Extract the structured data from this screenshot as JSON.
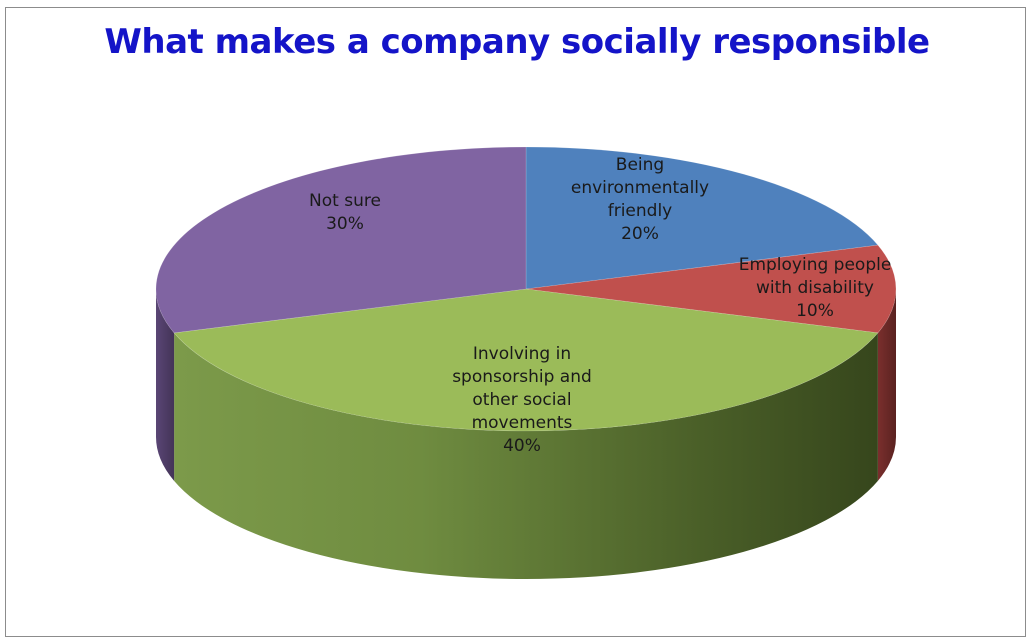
{
  "chart_data": {
    "type": "pie",
    "title": "What makes a company socially responsible",
    "categories": [
      "Being environmentally friendly",
      "Employing people with disability",
      "Involving in sponsorship and other social movements",
      "Not sure"
    ],
    "values": [
      20,
      10,
      40,
      30
    ],
    "value_labels": [
      "20%",
      "10%",
      "40%",
      "30%"
    ],
    "label_lines": [
      [
        "Being",
        "environmentally",
        "friendly",
        "20%"
      ],
      [
        "Employing people",
        "with disability",
        "10%"
      ],
      [
        "Involving in",
        "sponsorship and",
        "other social",
        "movements",
        "40%"
      ],
      [
        "Not sure",
        "30%"
      ]
    ],
    "colors": [
      "#4f81bd",
      "#c0504d",
      "#9bbb59",
      "#8064a2"
    ],
    "style": "3d",
    "legend": "none"
  }
}
